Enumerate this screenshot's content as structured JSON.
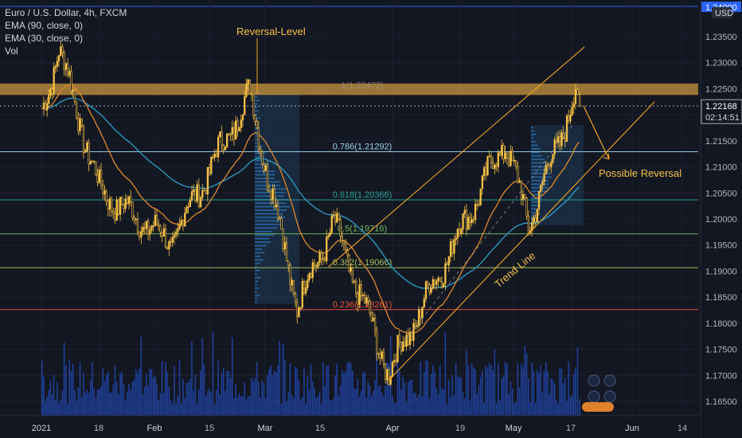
{
  "header": {
    "title": "Euro / U.S. Dollar, 4h, FXCM",
    "indicators": [
      "EMA (90, close, 0)",
      "EMA (30, close, 0)",
      "Vol"
    ],
    "currency_button": "USD"
  },
  "price_axis": {
    "ticks": [
      "1.23500",
      "1.23000",
      "1.22500",
      "1.22000",
      "1.21500",
      "1.21000",
      "1.20500",
      "1.20000",
      "1.19500",
      "1.19000",
      "1.18500",
      "1.18000",
      "1.17500",
      "1.17000",
      "1.16500"
    ],
    "current_price": "1.22168",
    "countdown": "02:14:51",
    "top_label": "1.24000"
  },
  "time_axis": {
    "ticks": [
      "2021",
      "18",
      "Feb",
      "15",
      "Mar",
      "15",
      "Apr",
      "19",
      "May",
      "17",
      "Jun",
      "14"
    ]
  },
  "annotations": {
    "reversal_level": "Reversal-Level",
    "possible_reversal": "Possible Reversal",
    "trend_line": "Trend Line"
  },
  "fib_levels": [
    {
      "label": "1(1.22472)",
      "value": 1.22472,
      "color": "#9aa1ad"
    },
    {
      "label": "0.786(1.21292)",
      "value": 1.21292,
      "color": "#9ad4f0"
    },
    {
      "label": "0.618(1.20366)",
      "value": 1.20366,
      "color": "#26a69a"
    },
    {
      "label": "0.5(1.19716)",
      "value": 1.19716,
      "color": "#6fbf5a"
    },
    {
      "label": "0.382(1.19066)",
      "value": 1.19066,
      "color": "#a5c45a"
    },
    {
      "label": "0.236(1.18261)",
      "value": 1.18261,
      "color": "#f0553a"
    }
  ],
  "colors": {
    "background": "#131722",
    "candle": "#f5c044",
    "ema_fast": "#e08a2a",
    "ema_slow": "#2aa0c8",
    "resistance_zone": "#c8963c",
    "volume": "#2962ff",
    "channel": "#f5a623",
    "price_line": "#2962ff"
  },
  "chart_data": {
    "type": "line",
    "title": "Euro / U.S. Dollar, 4h, FXCM",
    "ylim": [
      1.163,
      1.2395
    ],
    "resistance_zone": [
      1.2238,
      1.226
    ],
    "key_points": [
      {
        "date": "2021-01-01",
        "price": 1.22
      },
      {
        "date": "2021-01-06",
        "price": 1.233
      },
      {
        "date": "2021-01-18",
        "price": 1.2055
      },
      {
        "date": "2021-02-05",
        "price": 1.1955
      },
      {
        "date": "2021-02-25",
        "price": 1.224
      },
      {
        "date": "2021-03-09",
        "price": 1.1835
      },
      {
        "date": "2021-03-18",
        "price": 1.199
      },
      {
        "date": "2021-03-31",
        "price": 1.1705
      },
      {
        "date": "2021-04-29",
        "price": 1.215
      },
      {
        "date": "2021-05-05",
        "price": 1.199
      },
      {
        "date": "2021-05-18",
        "price": 1.224
      },
      {
        "date": "2021-05-19",
        "price": 1.2217
      }
    ],
    "x_ticks": [
      "2021",
      "18",
      "Feb",
      "15",
      "Mar",
      "15",
      "Apr",
      "19",
      "May",
      "17",
      "Jun",
      "14"
    ],
    "y_ticks": [
      1.235,
      1.23,
      1.225,
      1.22,
      1.215,
      1.21,
      1.205,
      1.2,
      1.195,
      1.19,
      1.185,
      1.18,
      1.175,
      1.17,
      1.165
    ]
  }
}
